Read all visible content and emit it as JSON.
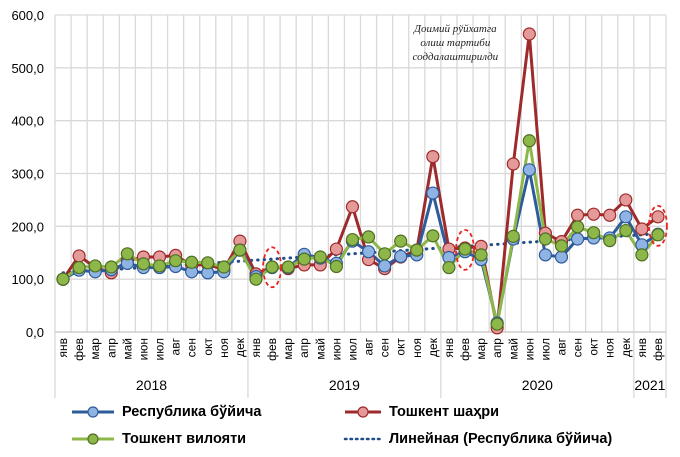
{
  "chart_data": {
    "type": "line",
    "title": "",
    "xlabel": "",
    "ylabel": "",
    "ylim": [
      0,
      600
    ],
    "yticks": [
      "0,0",
      "100,0",
      "200,0",
      "300,0",
      "400,0",
      "500,0",
      "600,0"
    ],
    "ytick_values": [
      0,
      100,
      200,
      300,
      400,
      500,
      600
    ],
    "grid": true,
    "legend_position": "bottom",
    "categories": [
      "янв",
      "фев",
      "мар",
      "апр",
      "май",
      "июн",
      "июл",
      "авг",
      "сен",
      "окт",
      "ноя",
      "дек",
      "янв",
      "фев",
      "мар",
      "апр",
      "май",
      "июн",
      "июл",
      "авг",
      "сен",
      "окт",
      "ноя",
      "дек",
      "янв",
      "фев",
      "мар",
      "апр",
      "май",
      "июн",
      "июл",
      "авг",
      "сен",
      "окт",
      "ноя",
      "дек",
      "янв",
      "фев"
    ],
    "year_groups": [
      {
        "label": "2018",
        "count": 12
      },
      {
        "label": "2019",
        "count": 12
      },
      {
        "label": "2020",
        "count": 12
      },
      {
        "label": "2021",
        "count": 2
      }
    ],
    "series": [
      {
        "name": "Республика бўйича",
        "line_color": "#2E5B9A",
        "marker_color": "#8FB4E3",
        "values": [
          100,
          117,
          114,
          118,
          130,
          122,
          122,
          124,
          114,
          112,
          114,
          155,
          105,
          122,
          122,
          147,
          140,
          130,
          172,
          152,
          125,
          143,
          146,
          263,
          141,
          152,
          137,
          17,
          176,
          307,
          146,
          142,
          176,
          178,
          178,
          218,
          165,
          185
        ]
      },
      {
        "name": "Тошкент шаҳри",
        "line_color": "#9E2A2B",
        "marker_color": "#E59A9A",
        "values": [
          100,
          144,
          122,
          112,
          135,
          142,
          142,
          145,
          126,
          128,
          118,
          172,
          110,
          123,
          120,
          127,
          127,
          157,
          237,
          137,
          120,
          142,
          155,
          332,
          157,
          159,
          162,
          8,
          318,
          564,
          187,
          171,
          221,
          223,
          221,
          250,
          195,
          218
        ]
      },
      {
        "name": "Тошкент вилояти",
        "line_color": "#8DB849",
        "marker_color": "#8DB849",
        "values": [
          100,
          122,
          125,
          123,
          148,
          129,
          125,
          135,
          132,
          131,
          123,
          155,
          100,
          123,
          123,
          138,
          142,
          124,
          175,
          180,
          148,
          172,
          155,
          182,
          122,
          157,
          146,
          15,
          181,
          362,
          176,
          163,
          199,
          188,
          173,
          192,
          146,
          184
        ]
      }
    ],
    "trendline": {
      "name": "Линейная (Республика бўйича)",
      "color": "#1F4E8C",
      "start_value": 112,
      "end_value": 186
    },
    "annotation": {
      "lines": [
        "Доимий рўйхатга",
        "олиш тартиби",
        "соддалаштирилди"
      ],
      "category_index": 29
    },
    "highlighted_categories": [
      13,
      25,
      37
    ],
    "highlight_color": "#E8231E"
  }
}
